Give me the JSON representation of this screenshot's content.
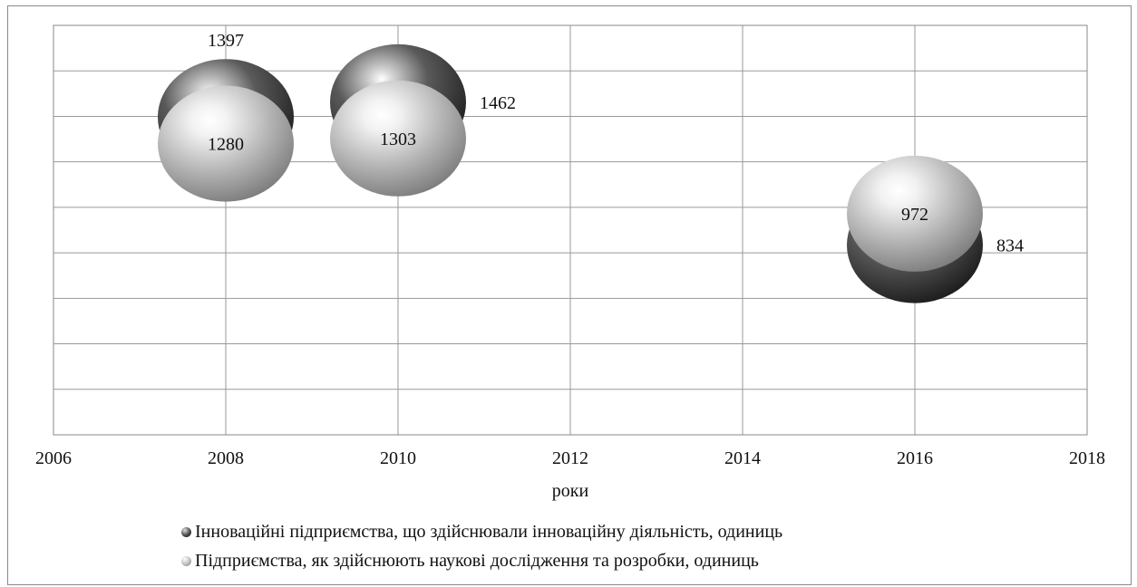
{
  "chart_data": {
    "type": "scatter",
    "title": "",
    "xlabel": "роки",
    "ylabel": "",
    "xlim": [
      2006,
      2018
    ],
    "ylim": [
      0,
      1800
    ],
    "x_ticks": [
      "2006",
      "2008",
      "2010",
      "2012",
      "2014",
      "2016",
      "2018"
    ],
    "grid": true,
    "y_tick_labels_shown": false,
    "legend_position": "bottom",
    "marker_style": "3d-sphere",
    "series": [
      {
        "name": "Інноваційні підприємства, що здійснювали інноваційну діяльність, одиниць",
        "color": "#4a4a4a",
        "points": [
          {
            "x": 2008,
            "y": 1397,
            "label": "1397"
          },
          {
            "x": 2010,
            "y": 1462,
            "label": "1462"
          },
          {
            "x": 2016,
            "y": 834,
            "label": "834"
          }
        ]
      },
      {
        "name": "Підприємства, як здійснюють наукові дослідження та розробки, одиниць",
        "color": "#bdbdbd",
        "points": [
          {
            "x": 2008,
            "y": 1280,
            "label": "1280"
          },
          {
            "x": 2010,
            "y": 1303,
            "label": "1303"
          },
          {
            "x": 2016,
            "y": 972,
            "label": "972"
          }
        ]
      }
    ]
  }
}
